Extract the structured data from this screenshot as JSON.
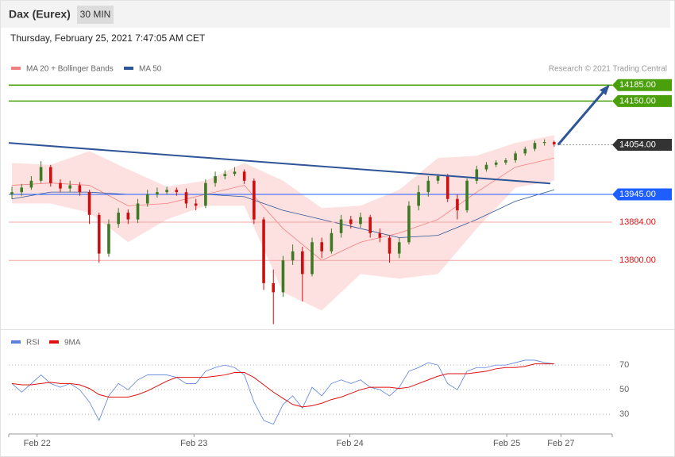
{
  "header": {
    "title": "Dax (Eurex)",
    "interval": "30 MIN",
    "timestamp": "Thursday, February 25, 2021 7:47:05 AM CET"
  },
  "chart_data": [
    {
      "type": "candlestick",
      "credit": "Research © 2021 Trading Central",
      "ylim": [
        13654,
        14250
      ],
      "xlim": [
        -0.33,
        62
      ],
      "up_color": "#3d7a24",
      "down_color": "#cc1010",
      "open": [
        13945,
        13950,
        13960,
        13975,
        14005,
        13970,
        13958,
        13965,
        13950,
        13900,
        13815,
        13880,
        13905,
        13890,
        13925,
        13945,
        13950,
        13955,
        13950,
        13925,
        13920,
        13970,
        13985,
        13990,
        13995,
        13975,
        13890,
        13750,
        13730,
        13800,
        13820,
        13770,
        13840,
        13820,
        13860,
        13890,
        13880,
        13895,
        13860,
        13850,
        13815,
        13840,
        13920,
        13950,
        13975,
        13985,
        13935,
        13910,
        13975,
        14000,
        14010,
        14015,
        14020,
        14035,
        14045,
        14058,
        14060
      ],
      "high": [
        13962,
        13968,
        13985,
        14018,
        14010,
        13978,
        13975,
        13972,
        13955,
        13905,
        13890,
        13915,
        13912,
        13935,
        13955,
        13960,
        13962,
        13960,
        13958,
        13935,
        13978,
        13995,
        13998,
        14005,
        14000,
        13980,
        13895,
        13780,
        13810,
        13835,
        13830,
        13850,
        13850,
        13870,
        13900,
        13898,
        13905,
        13900,
        13870,
        13855,
        13850,
        13930,
        13965,
        13985,
        13990,
        13990,
        13945,
        13980,
        14008,
        14016,
        14020,
        14025,
        14040,
        14050,
        14063,
        14066,
        14063
      ],
      "low": [
        13935,
        13942,
        13955,
        13970,
        13962,
        13950,
        13950,
        13942,
        13880,
        13795,
        13808,
        13872,
        13880,
        13882,
        13918,
        13938,
        13945,
        13942,
        13915,
        13910,
        13915,
        13962,
        13978,
        13985,
        13968,
        13880,
        13735,
        13660,
        13720,
        13790,
        13710,
        13765,
        13805,
        13815,
        13850,
        13870,
        13872,
        13850,
        13840,
        13795,
        13805,
        13835,
        13910,
        13940,
        13968,
        13928,
        13890,
        13905,
        13968,
        13995,
        14005,
        14010,
        14015,
        14030,
        14040,
        14052,
        14050
      ],
      "close": [
        13950,
        13960,
        13975,
        14005,
        13970,
        13958,
        13965,
        13950,
        13900,
        13815,
        13880,
        13905,
        13890,
        13925,
        13945,
        13950,
        13955,
        13950,
        13925,
        13920,
        13970,
        13985,
        13990,
        13995,
        13975,
        13890,
        13750,
        13730,
        13800,
        13820,
        13770,
        13840,
        13820,
        13860,
        13890,
        13880,
        13895,
        13860,
        13850,
        13815,
        13840,
        13920,
        13950,
        13975,
        13985,
        13935,
        13910,
        13975,
        14000,
        14010,
        14015,
        14020,
        14035,
        14045,
        14058,
        14060,
        14055
      ],
      "series": [
        {
          "name": "MA 20 + Bollinger Bands",
          "color": "#f08080",
          "band_color": "#fde0e0",
          "x": [
            0,
            4,
            8,
            12,
            16,
            20,
            24,
            28,
            32,
            36,
            40,
            44,
            48,
            52,
            56
          ],
          "values": [
            13965,
            13970,
            13965,
            13920,
            13925,
            13945,
            13965,
            13870,
            13800,
            13840,
            13860,
            13890,
            13950,
            14005,
            14025
          ],
          "upper": [
            14014,
            14010,
            14040,
            14000,
            13962,
            13975,
            14014,
            13975,
            13915,
            13920,
            13955,
            14025,
            14030,
            14058,
            14075
          ],
          "lower": [
            13925,
            13925,
            13905,
            13840,
            13890,
            13920,
            13920,
            13730,
            13690,
            13770,
            13760,
            13770,
            13870,
            13960,
            13975
          ]
        },
        {
          "name": "MA 50",
          "color": "#2e5597",
          "x": [
            0,
            4,
            8,
            12,
            16,
            20,
            24,
            28,
            32,
            36,
            40,
            44,
            48,
            52,
            56
          ],
          "values": [
            13935,
            13950,
            13950,
            13945,
            13945,
            13945,
            13940,
            13910,
            13890,
            13870,
            13850,
            13855,
            13890,
            13930,
            13955
          ]
        }
      ],
      "trend_line": {
        "color": "#2e5597",
        "x": [
          -0.33,
          55.6
        ],
        "values": [
          14058,
          13969
        ]
      },
      "arrow": {
        "color": "#2e5597",
        "x": [
          56.4,
          61.6
        ],
        "values": [
          14054,
          14183
        ]
      },
      "levels": [
        {
          "value": 14185,
          "label": "14185.00",
          "color": "#4aa00a",
          "style": "box"
        },
        {
          "value": 14150,
          "label": "14150.00",
          "color": "#4aa00a",
          "style": "box"
        },
        {
          "value": 14054,
          "label": "14054.00",
          "color": "#333333",
          "style": "dotted"
        },
        {
          "value": 13945,
          "label": "13945.00",
          "color": "#1e5eff",
          "style": "box"
        },
        {
          "value": 13884,
          "label": "13884.00",
          "color": "#e01010",
          "style": "text"
        },
        {
          "value": 13800,
          "label": "13800.00",
          "color": "#e01010",
          "style": "text"
        }
      ]
    },
    {
      "type": "line",
      "ylim": [
        14,
        83
      ],
      "xlim": [
        -0.33,
        62
      ],
      "yticks": [
        70,
        50,
        30
      ],
      "grid": true,
      "xticks": [
        {
          "value": 2.6,
          "label": "Feb 22"
        },
        {
          "value": 18.8,
          "label": "Feb 23"
        },
        {
          "value": 34.9,
          "label": "Feb 24"
        },
        {
          "value": 51.1,
          "label": "Feb 25"
        },
        {
          "value": 56.7,
          "label": "Feb 27"
        }
      ],
      "series": [
        {
          "name": "RSI",
          "color": "#5b80dd",
          "values": [
            55,
            48,
            55,
            62,
            55,
            52,
            55,
            50,
            40,
            25,
            45,
            55,
            50,
            58,
            62,
            62,
            62,
            60,
            55,
            55,
            65,
            68,
            70,
            68,
            62,
            40,
            25,
            22,
            38,
            45,
            35,
            52,
            45,
            55,
            58,
            55,
            58,
            52,
            50,
            45,
            52,
            65,
            68,
            72,
            70,
            55,
            50,
            65,
            68,
            68,
            70,
            70,
            72,
            74,
            74,
            72,
            71
          ]
        },
        {
          "name": "9MA",
          "color": "#e01010",
          "values": [
            55,
            54,
            54,
            55,
            56,
            55,
            55,
            54,
            51,
            46,
            44,
            44,
            44,
            46,
            49,
            53,
            57,
            60,
            60,
            60,
            60,
            61,
            62,
            64,
            64,
            60,
            54,
            48,
            43,
            38,
            36,
            37,
            39,
            42,
            44,
            47,
            50,
            52,
            52,
            52,
            51,
            52,
            55,
            58,
            61,
            63,
            63,
            63,
            64,
            65,
            67,
            68,
            68,
            69,
            71,
            71,
            71
          ]
        }
      ]
    }
  ]
}
